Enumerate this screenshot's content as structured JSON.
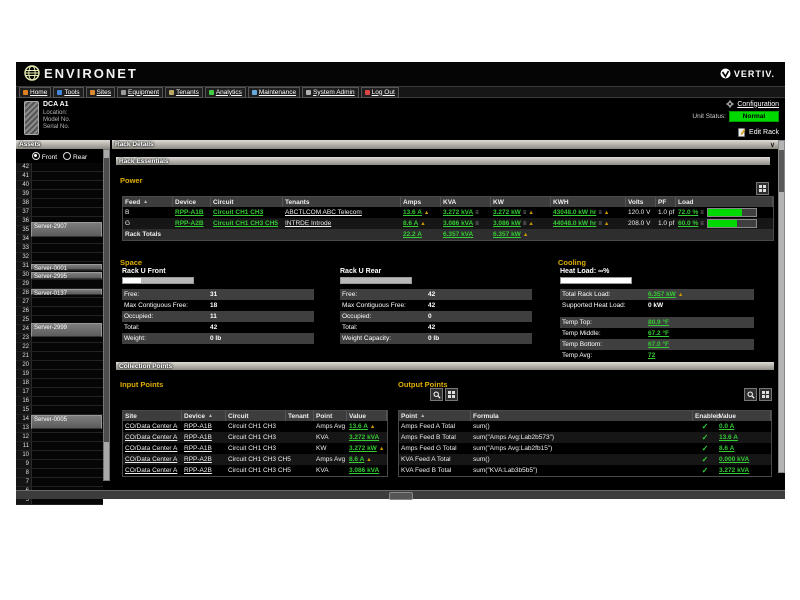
{
  "brand": {
    "logo_text": "ENVIRONET",
    "vendor_text": "VERTIV."
  },
  "menu": {
    "items": [
      {
        "label": "Home",
        "color": "#e08020"
      },
      {
        "label": "Tools",
        "color": "#4488dd"
      },
      {
        "label": "Sites",
        "color": "#dd8833"
      },
      {
        "label": "Equipment",
        "color": "#9a9a9a"
      },
      {
        "label": "Tenants",
        "color": "#bba866"
      },
      {
        "label": "Analytics",
        "color": "#44cc44"
      },
      {
        "label": "Maintenance",
        "color": "#66aadd"
      },
      {
        "label": "System Admin",
        "color": "#b0b0b0"
      },
      {
        "label": "Log Out",
        "color": "#dd4444"
      }
    ]
  },
  "unit_info": {
    "name": "DCA A1",
    "lines": [
      "Location:",
      "Model No.",
      "Serial No."
    ]
  },
  "header_actions": {
    "configuration": "Configuration",
    "unit_status_label": "Unit Status:",
    "unit_status": "Normal",
    "edit_rack": "Edit Rack"
  },
  "assets_panel": {
    "title": "Assets",
    "front_label": "Front",
    "rear_label": "Rear",
    "top_unit": 42,
    "bottom_unit": 5,
    "servers": [
      {
        "unit": 35,
        "name": "Server-2907",
        "span": 2
      },
      {
        "unit": 30,
        "name": "Server-0001",
        "span": 1
      },
      {
        "unit": 29,
        "name": "Server-2995",
        "span": 1
      },
      {
        "unit": 27,
        "name": "Server-0137",
        "span": 1
      },
      {
        "unit": 23,
        "name": "Server-2999",
        "span": 2
      },
      {
        "unit": 12,
        "name": "Server-0005",
        "span": 2
      }
    ]
  },
  "rack_details_title": "Rack Details",
  "rack_essentials_title": "Rack Essentials",
  "power": {
    "title": "Power",
    "columns": [
      "Feed",
      "Device",
      "Circuit",
      "Tenants",
      "Amps",
      "KVA",
      "KW",
      "KWH",
      "Volts",
      "PF",
      "Load"
    ],
    "sort_column": "Feed",
    "rows": [
      {
        "feed": "B",
        "device": "RPP-A1B",
        "circuit": "Circuit CH1 CH3",
        "tenants": "ABCTLCOM ABC Telecom",
        "amps": {
          "v": "13.6 A",
          "warn": true
        },
        "kva": {
          "v": "3.272 kVA",
          "eq": true
        },
        "kw": {
          "v": "3.272 kW",
          "eq": true,
          "warn": true
        },
        "kwh": {
          "v": "43048.0 kW hr",
          "eq": true,
          "warn": true
        },
        "volts": "120.0 V",
        "pf": "1.0 pf",
        "load": {
          "v": "72.0 %",
          "eq": true,
          "pct": 72
        }
      },
      {
        "feed": "G",
        "device": "RPP-A2B",
        "circuit": "Circuit CH1 CH3 CH5",
        "tenants": "INTRDE Introde",
        "amps": {
          "v": "8.6 A",
          "warn": true
        },
        "kva": {
          "v": "3.086 kVA",
          "eq": true
        },
        "kw": {
          "v": "3.086 kW",
          "eq": true,
          "warn": true
        },
        "kwh": {
          "v": "44048.0 kW hr",
          "eq": true,
          "warn": true
        },
        "volts": "208.0 V",
        "pf": "1.0 pf",
        "load": {
          "v": "60.0 %",
          "eq": true,
          "pct": 60
        }
      }
    ],
    "totals": {
      "label": "Rack Totals",
      "amps": "22.2 A",
      "kva": "6.357 kVA",
      "kw": "6.357 kW",
      "kw_warn": true
    }
  },
  "space": {
    "title": "Space",
    "front": {
      "title": "Rack U Front",
      "fill_pct": 26,
      "rows": [
        [
          "Free:",
          "31"
        ],
        [
          "Max Contiguous Free:",
          "18"
        ],
        [
          "Occupied:",
          "11"
        ],
        [
          "Total:",
          "42"
        ],
        [
          "Weight:",
          "0 lb"
        ]
      ]
    },
    "rear": {
      "title": "Rack U Rear",
      "fill_pct": 0,
      "rows": [
        [
          "Free:",
          "42"
        ],
        [
          "Max Contiguous Free:",
          "42"
        ],
        [
          "Occupied:",
          "0"
        ],
        [
          "Total:",
          "42"
        ],
        [
          "Weight Capacity:",
          "0 lb"
        ]
      ]
    }
  },
  "cooling": {
    "title": "Cooling",
    "heat_load_label": "Heat Load: ∞%",
    "heat_fill_pct": 100,
    "rows": [
      {
        "label": "Total Rack Load:",
        "value": "6.357 kW",
        "green": true,
        "warn": true
      },
      {
        "label": "Supported Heat Load:",
        "value": "0 kW"
      },
      {
        "label": "Temp Top:",
        "value": "80.9 °F",
        "green": true,
        "gap_before": true
      },
      {
        "label": "Temp Middle:",
        "value": "67.2 °F",
        "green": true
      },
      {
        "label": "Temp Bottom:",
        "value": "67.0 °F",
        "green": true
      },
      {
        "label": "Temp Avg:",
        "value": "72",
        "green": true
      }
    ]
  },
  "collection_points": {
    "title": "Collection Points",
    "input": {
      "title": "Input Points",
      "columns": [
        "Site",
        "Device",
        "Circuit",
        "Tenant",
        "Point",
        "Value"
      ],
      "sort_column": "Device",
      "rows": [
        {
          "site": "CO/Data Center A",
          "device": "RPP-A1B",
          "circuit": "Circuit CH1 CH3",
          "tenant": "",
          "point": "Amps Avg",
          "value": "13.6 A",
          "warn": true
        },
        {
          "site": "CO/Data Center A",
          "device": "RPP-A1B",
          "circuit": "Circuit CH1 CH3",
          "tenant": "",
          "point": "KVA",
          "value": "3.272 kVA"
        },
        {
          "site": "CO/Data Center A",
          "device": "RPP-A1B",
          "circuit": "Circuit CH1 CH3",
          "tenant": "",
          "point": "KW",
          "value": "3.272 kW",
          "warn": true
        },
        {
          "site": "CO/Data Center A",
          "device": "RPP-A2B",
          "circuit": "Circuit CH1 CH3 CH5",
          "tenant": "",
          "point": "Amps Avg",
          "value": "8.6 A",
          "warn": true
        },
        {
          "site": "CO/Data Center A",
          "device": "RPP-A2B",
          "circuit": "Circuit CH1 CH3 CH5",
          "tenant": "",
          "point": "KVA",
          "value": "3.086 kVA"
        }
      ]
    },
    "output": {
      "title": "Output Points",
      "columns": [
        "Point",
        "Formula",
        "Enabled",
        "Value"
      ],
      "sort_column": "Point",
      "rows": [
        {
          "point": "Amps Feed A Total",
          "formula": "sum()",
          "enabled": true,
          "value": "0.0 A"
        },
        {
          "point": "Amps Feed B Total",
          "formula": "sum(\"Amps Avg:Lab2b573\")",
          "enabled": true,
          "value": "13.6 A"
        },
        {
          "point": "Amps Feed G Total",
          "formula": "sum(\"Amps Avg:Lab2fb15\")",
          "enabled": true,
          "value": "8.6 A"
        },
        {
          "point": "KVA Feed A Total",
          "formula": "sum()",
          "enabled": true,
          "value": "0.000 kVA"
        },
        {
          "point": "KVA Feed B Total",
          "formula": "sum(\"KVA:Lab3b5b5\")",
          "enabled": true,
          "value": "3.272 kVA"
        }
      ]
    }
  },
  "colors": {
    "status_green": "#00d900",
    "link_green": "#33cc33",
    "section_yellow": "#dfae00",
    "warn_yellow": "#cc9900",
    "bar_green": "#00d900"
  }
}
